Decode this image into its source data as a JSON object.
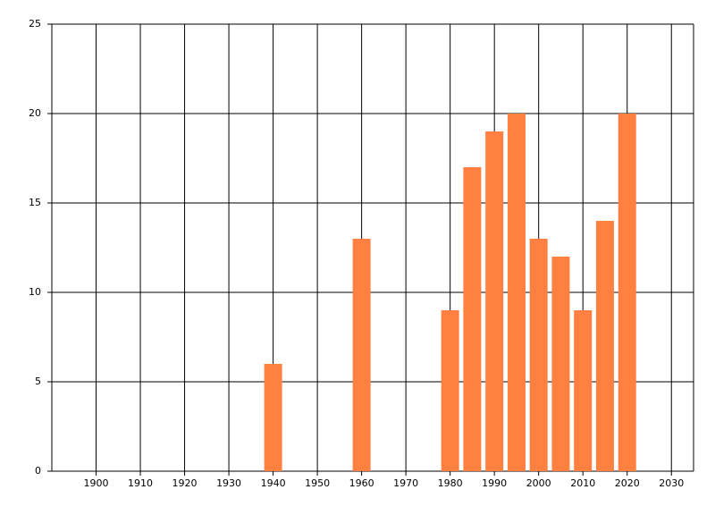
{
  "chart_data": {
    "type": "bar",
    "x": [
      1940,
      1960,
      1980,
      1985,
      1990,
      1995,
      2000,
      2005,
      2010,
      2015,
      2020
    ],
    "values": [
      6,
      13,
      9,
      17,
      19,
      20,
      13,
      12,
      9,
      14,
      20
    ],
    "color": "#ff8040",
    "xlim": [
      1890,
      2035
    ],
    "xticks": [
      1900,
      1910,
      1920,
      1930,
      1940,
      1950,
      1960,
      1970,
      1980,
      1990,
      2000,
      2010,
      2020,
      2030
    ],
    "ylim": [
      0,
      25
    ],
    "yticks": [
      0,
      5,
      10,
      15,
      20,
      25
    ],
    "grid": true
  }
}
